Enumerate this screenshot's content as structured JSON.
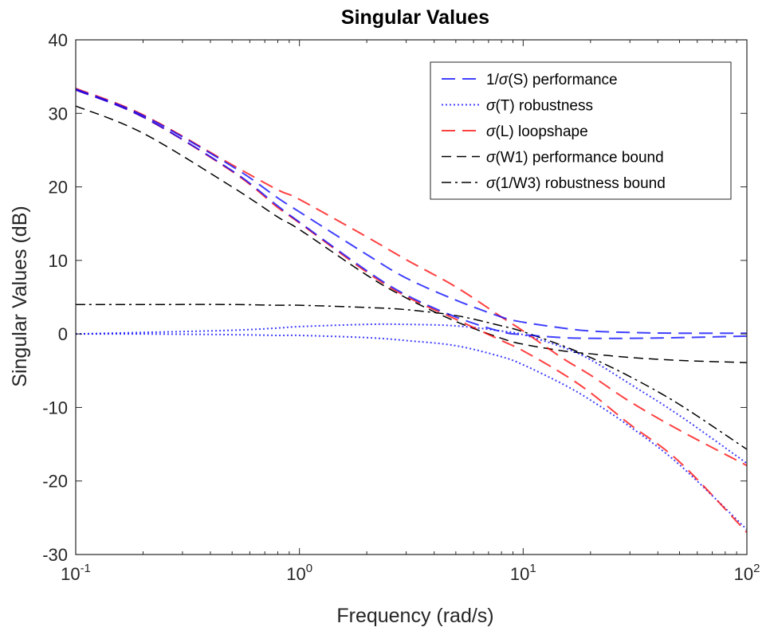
{
  "chart_data": {
    "type": "line",
    "title": "Singular Values",
    "xlabel": "Frequency (rad/s)",
    "ylabel": "Singular Values (dB)",
    "xscale": "log",
    "xlim": [
      0.1,
      100
    ],
    "ylim": [
      -30,
      40
    ],
    "grid": false,
    "legend_position": "top-right",
    "x_ticks": [
      {
        "value": 0.1,
        "base": "10",
        "exp": "-1"
      },
      {
        "value": 1,
        "base": "10",
        "exp": "0"
      },
      {
        "value": 10,
        "base": "10",
        "exp": "1"
      },
      {
        "value": 100,
        "base": "10",
        "exp": "2"
      }
    ],
    "y_ticks": [
      {
        "value": -30,
        "label": "-30"
      },
      {
        "value": -20,
        "label": "-20"
      },
      {
        "value": -10,
        "label": "-10"
      },
      {
        "value": 0,
        "label": "0"
      },
      {
        "value": 10,
        "label": "10"
      },
      {
        "value": 20,
        "label": "20"
      },
      {
        "value": 30,
        "label": "30"
      },
      {
        "value": 40,
        "label": "40"
      }
    ],
    "x": [
      0.1,
      0.2,
      0.5,
      0.8,
      1,
      2,
      3,
      5,
      8,
      10,
      15,
      20,
      30,
      50,
      100
    ],
    "series": [
      {
        "name": "1/σ(S) performance",
        "sigma_prefix": "1/",
        "sigma_suffix": "(S) performance",
        "color": "#0000ff",
        "dash": "long-dash",
        "curves": [
          [
            33.3,
            29.7,
            22.8,
            18.5,
            16.6,
            10.8,
            7.6,
            4.6,
            2.3,
            1.6,
            0.8,
            0.4,
            0.2,
            0.1,
            0.1
          ],
          [
            33.2,
            29.5,
            22.2,
            17.4,
            15.2,
            8.6,
            5.3,
            2.3,
            0.3,
            -0.1,
            -0.5,
            -0.6,
            -0.6,
            -0.5,
            -0.3
          ]
        ]
      },
      {
        "name": "σ(T) robustness",
        "sigma_prefix": "",
        "sigma_suffix": "(T) robustness",
        "color": "#0000ff",
        "dash": "dotted",
        "curves": [
          [
            0.0,
            0.2,
            0.5,
            0.8,
            1.0,
            1.3,
            1.3,
            1.1,
            0.4,
            -0.1,
            -1.8,
            -3.5,
            -6.8,
            -11.1,
            -17.6
          ],
          [
            0.0,
            0.0,
            -0.1,
            -0.2,
            -0.2,
            -0.5,
            -0.9,
            -1.6,
            -3.1,
            -4.2,
            -6.8,
            -9.0,
            -12.6,
            -17.8,
            -26.6
          ]
        ]
      },
      {
        "name": "σ(L) loopshape",
        "sigma_prefix": "",
        "sigma_suffix": "(L) loopshape",
        "color": "#ff0000",
        "dash": "long-dash",
        "curves": [
          [
            33.4,
            29.8,
            23.0,
            19.6,
            18.3,
            13.2,
            10.1,
            6.4,
            2.3,
            0.4,
            -3.3,
            -5.6,
            -9.2,
            -13.1,
            -17.9
          ],
          [
            33.2,
            29.5,
            22.1,
            17.2,
            15.1,
            8.4,
            5.1,
            2.0,
            -0.9,
            -2.3,
            -5.4,
            -8.0,
            -12.3,
            -17.4,
            -27.0
          ]
        ]
      },
      {
        "name": "σ(W1) performance bound",
        "sigma_prefix": "",
        "sigma_suffix": "(W1) performance bound",
        "color": "#000000",
        "dash": "dash",
        "curves": [
          [
            31.0,
            27.3,
            20.0,
            15.9,
            14.2,
            8.0,
            4.9,
            1.7,
            -0.6,
            -1.4,
            -2.3,
            -2.7,
            -3.2,
            -3.6,
            -3.9
          ]
        ]
      },
      {
        "name": "σ(1/W3) robustness bound",
        "sigma_prefix": "",
        "sigma_suffix": "(1/W3) robustness bound",
        "color": "#000000",
        "dash": "dash-dot",
        "curves": [
          [
            4.0,
            4.0,
            4.0,
            3.9,
            3.9,
            3.6,
            3.3,
            2.5,
            1.1,
            0.3,
            -1.6,
            -3.2,
            -5.8,
            -9.6,
            -15.7
          ]
        ]
      }
    ]
  }
}
